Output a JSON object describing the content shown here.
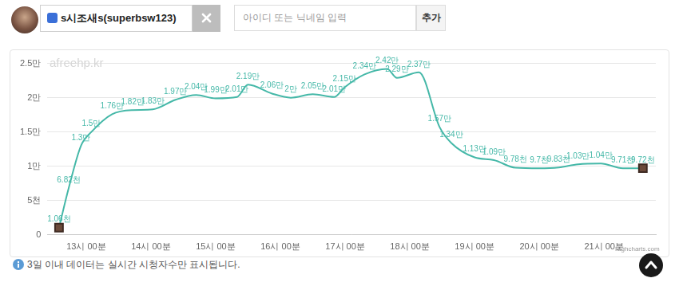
{
  "chart_data": {
    "type": "line",
    "x": [
      12.58,
      12.73,
      12.92,
      13.08,
      13.4,
      13.72,
      14.03,
      14.38,
      14.7,
      15.0,
      15.33,
      15.5,
      15.87,
      16.16,
      16.5,
      16.83,
      16.99,
      17.3,
      17.65,
      17.8,
      18.14,
      18.46,
      18.64,
      19.0,
      19.3,
      19.63,
      20.0,
      20.3,
      20.6,
      20.95,
      21.29,
      21.6
    ],
    "values": [
      1060,
      6820,
      13000,
      15000,
      17600,
      18200,
      18300,
      19700,
      20400,
      19900,
      20100,
      21900,
      20600,
      20000,
      20500,
      20100,
      21500,
      23400,
      24200,
      22900,
      23700,
      15700,
      13400,
      11300,
      10900,
      9780,
      9700,
      9830,
      10300,
      10400,
      9710,
      9720
    ],
    "value_labels": [
      "1.06천",
      "6.82천",
      "1.3만",
      "1.5만",
      "1.76만",
      "1.82만",
      "1.83만",
      "1.97만",
      "2.04만",
      "1.99만",
      "2.01만",
      "2.19만",
      "2.06만",
      "2만",
      "2.05만",
      "2.01만",
      "2.15만",
      "2.34만",
      "2.42만",
      "2.29만",
      "2.37만",
      "1.57만",
      "1.34만",
      "1.13만",
      "1.09만",
      "9.78천",
      "9.7천",
      "9.83천",
      "1.03만",
      "1.04만",
      "9.71천",
      "9.72천"
    ],
    "color": "#45b8a8",
    "data_labels": true,
    "grid": true,
    "xlim": [
      12.4,
      21.8
    ],
    "xticks": [
      {
        "value": 13,
        "label": "13시 00분"
      },
      {
        "value": 14,
        "label": "14시 00분"
      },
      {
        "value": 15,
        "label": "15시 00분"
      },
      {
        "value": 16,
        "label": "16시 00분"
      },
      {
        "value": 17,
        "label": "17시 00분"
      },
      {
        "value": 18,
        "label": "18시 00분"
      },
      {
        "value": 19,
        "label": "19시 00분"
      },
      {
        "value": 20,
        "label": "20시 00분"
      },
      {
        "value": 21,
        "label": "21시 00분"
      }
    ],
    "ylim": [
      0,
      25000
    ],
    "yticks": [
      0,
      {
        "value": 5000,
        "label": "5천"
      },
      {
        "value": 10000,
        "label": "1만"
      },
      {
        "value": 15000,
        "label": "1.5만"
      },
      {
        "value": 20000,
        "label": "2만"
      },
      {
        "value": 25000,
        "label": "2.5만"
      }
    ]
  },
  "header": {
    "channel": "s시조새s(superbsw123)",
    "input_placeholder": "아이디 또는 닉네임 입력",
    "button": "추가"
  },
  "watermark": "afreehp.kr",
  "credit": "Highcharts.com",
  "note": "3일 이내 데이터는 실시간 시청자수만 표시됩니다."
}
